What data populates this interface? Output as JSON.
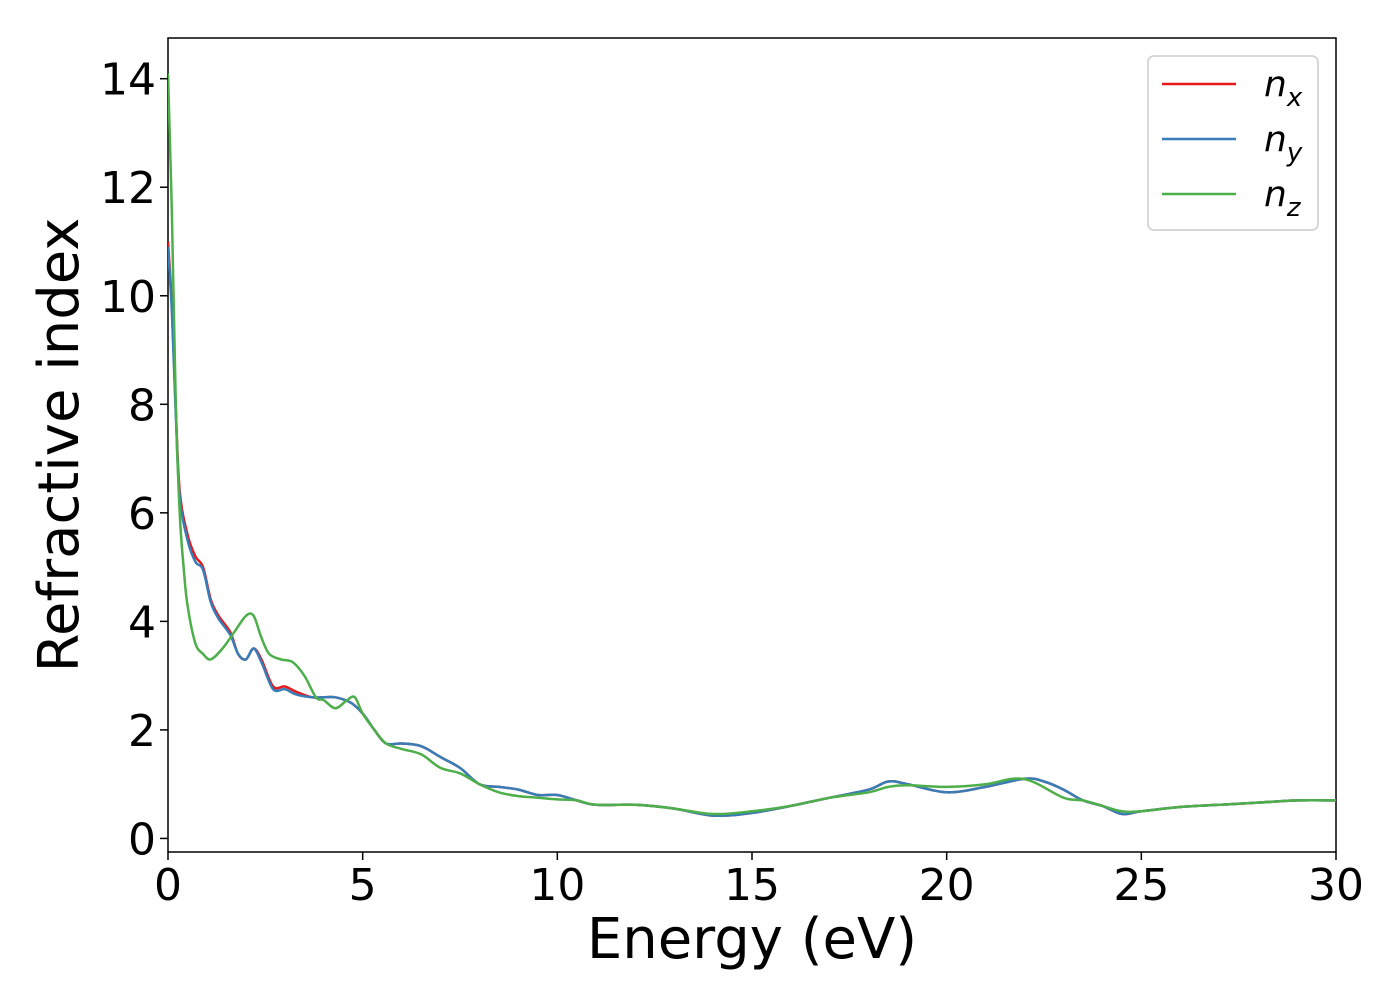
{
  "chart_data": {
    "type": "line",
    "title": "",
    "xlabel": "Energy (eV)",
    "ylabel": "Refractive index",
    "xlim": [
      0,
      30
    ],
    "ylim": [
      -0.25,
      14.75
    ],
    "xticks": [
      0,
      5,
      10,
      15,
      20,
      25,
      30
    ],
    "yticks": [
      0,
      2,
      4,
      6,
      8,
      10,
      12,
      14
    ],
    "grid": false,
    "legend_position": "top-right",
    "series": [
      {
        "name": "n_x",
        "label_base": "n",
        "label_sub": "x",
        "color": "#e41a1c",
        "x": [
          0,
          0.1,
          0.2,
          0.3,
          0.5,
          0.7,
          0.9,
          1.1,
          1.3,
          1.6,
          1.8,
          2.0,
          2.2,
          2.4,
          2.7,
          3.0,
          3.3,
          3.7,
          4.0,
          4.3,
          4.7,
          5.0,
          5.3,
          5.6,
          6.0,
          6.5,
          7.0,
          7.5,
          8.0,
          8.5,
          9.0,
          9.5,
          10.0,
          10.5,
          11.0,
          12.0,
          13.0,
          14.0,
          15.0,
          16.0,
          17.0,
          18.0,
          18.5,
          19.0,
          20.0,
          21.0,
          22.0,
          22.5,
          23.0,
          23.5,
          24.0,
          24.5,
          25.0,
          26.0,
          27.0,
          28.0,
          29.0,
          30.0
        ],
        "values": [
          11.0,
          9.8,
          7.9,
          6.4,
          5.6,
          5.2,
          5.0,
          4.4,
          4.1,
          3.8,
          3.4,
          3.3,
          3.5,
          3.3,
          2.8,
          2.8,
          2.7,
          2.6,
          2.6,
          2.6,
          2.5,
          2.3,
          2.0,
          1.75,
          1.75,
          1.7,
          1.5,
          1.3,
          1.0,
          0.95,
          0.9,
          0.8,
          0.8,
          0.7,
          0.62,
          0.62,
          0.55,
          0.42,
          0.47,
          0.6,
          0.75,
          0.9,
          1.05,
          1.0,
          0.85,
          0.95,
          1.1,
          1.05,
          0.9,
          0.7,
          0.6,
          0.45,
          0.5,
          0.58,
          0.62,
          0.66,
          0.7,
          0.7
        ]
      },
      {
        "name": "n_y",
        "label_base": "n",
        "label_sub": "y",
        "color": "#377eb8",
        "x": [
          0,
          0.1,
          0.2,
          0.3,
          0.5,
          0.7,
          0.9,
          1.1,
          1.3,
          1.6,
          1.8,
          2.0,
          2.2,
          2.4,
          2.7,
          3.0,
          3.3,
          3.7,
          4.0,
          4.3,
          4.7,
          5.0,
          5.3,
          5.6,
          6.0,
          6.5,
          7.0,
          7.5,
          8.0,
          8.5,
          9.0,
          9.5,
          10.0,
          10.5,
          11.0,
          12.0,
          13.0,
          14.0,
          15.0,
          16.0,
          17.0,
          18.0,
          18.5,
          19.0,
          20.0,
          21.0,
          22.0,
          22.5,
          23.0,
          23.5,
          24.0,
          24.5,
          25.0,
          26.0,
          27.0,
          28.0,
          29.0,
          30.0
        ],
        "values": [
          10.9,
          9.7,
          7.8,
          6.3,
          5.5,
          5.1,
          4.95,
          4.35,
          4.05,
          3.75,
          3.4,
          3.3,
          3.5,
          3.25,
          2.75,
          2.75,
          2.65,
          2.6,
          2.6,
          2.6,
          2.5,
          2.3,
          2.0,
          1.75,
          1.75,
          1.7,
          1.5,
          1.3,
          1.0,
          0.95,
          0.9,
          0.8,
          0.8,
          0.7,
          0.62,
          0.62,
          0.55,
          0.42,
          0.47,
          0.6,
          0.75,
          0.9,
          1.05,
          1.0,
          0.85,
          0.95,
          1.1,
          1.05,
          0.9,
          0.7,
          0.6,
          0.45,
          0.5,
          0.58,
          0.62,
          0.66,
          0.7,
          0.7
        ]
      },
      {
        "name": "n_z",
        "label_base": "n",
        "label_sub": "z",
        "color": "#4daf4a",
        "x": [
          0,
          0.1,
          0.2,
          0.3,
          0.4,
          0.5,
          0.7,
          0.9,
          1.1,
          1.4,
          1.7,
          2.0,
          2.2,
          2.4,
          2.6,
          2.9,
          3.2,
          3.5,
          3.8,
          4.0,
          4.3,
          4.6,
          4.8,
          5.0,
          5.3,
          5.6,
          6.0,
          6.5,
          7.0,
          7.5,
          8.0,
          8.5,
          9.0,
          9.5,
          10.0,
          10.5,
          11.0,
          12.0,
          13.0,
          14.0,
          15.0,
          16.0,
          17.0,
          18.0,
          18.5,
          19.0,
          20.0,
          21.0,
          21.7,
          22.2,
          23.0,
          23.5,
          24.0,
          24.5,
          25.0,
          26.0,
          27.0,
          28.0,
          29.0,
          30.0
        ],
        "values": [
          14.1,
          11.5,
          8.0,
          6.0,
          5.0,
          4.3,
          3.6,
          3.4,
          3.3,
          3.5,
          3.8,
          4.1,
          4.1,
          3.7,
          3.4,
          3.3,
          3.25,
          3.0,
          2.6,
          2.55,
          2.4,
          2.55,
          2.6,
          2.3,
          2.0,
          1.75,
          1.65,
          1.55,
          1.3,
          1.2,
          1.0,
          0.85,
          0.78,
          0.75,
          0.72,
          0.7,
          0.62,
          0.62,
          0.55,
          0.45,
          0.5,
          0.6,
          0.75,
          0.85,
          0.95,
          0.98,
          0.95,
          1.0,
          1.1,
          1.05,
          0.75,
          0.7,
          0.6,
          0.5,
          0.5,
          0.58,
          0.62,
          0.66,
          0.7,
          0.7
        ]
      }
    ]
  }
}
